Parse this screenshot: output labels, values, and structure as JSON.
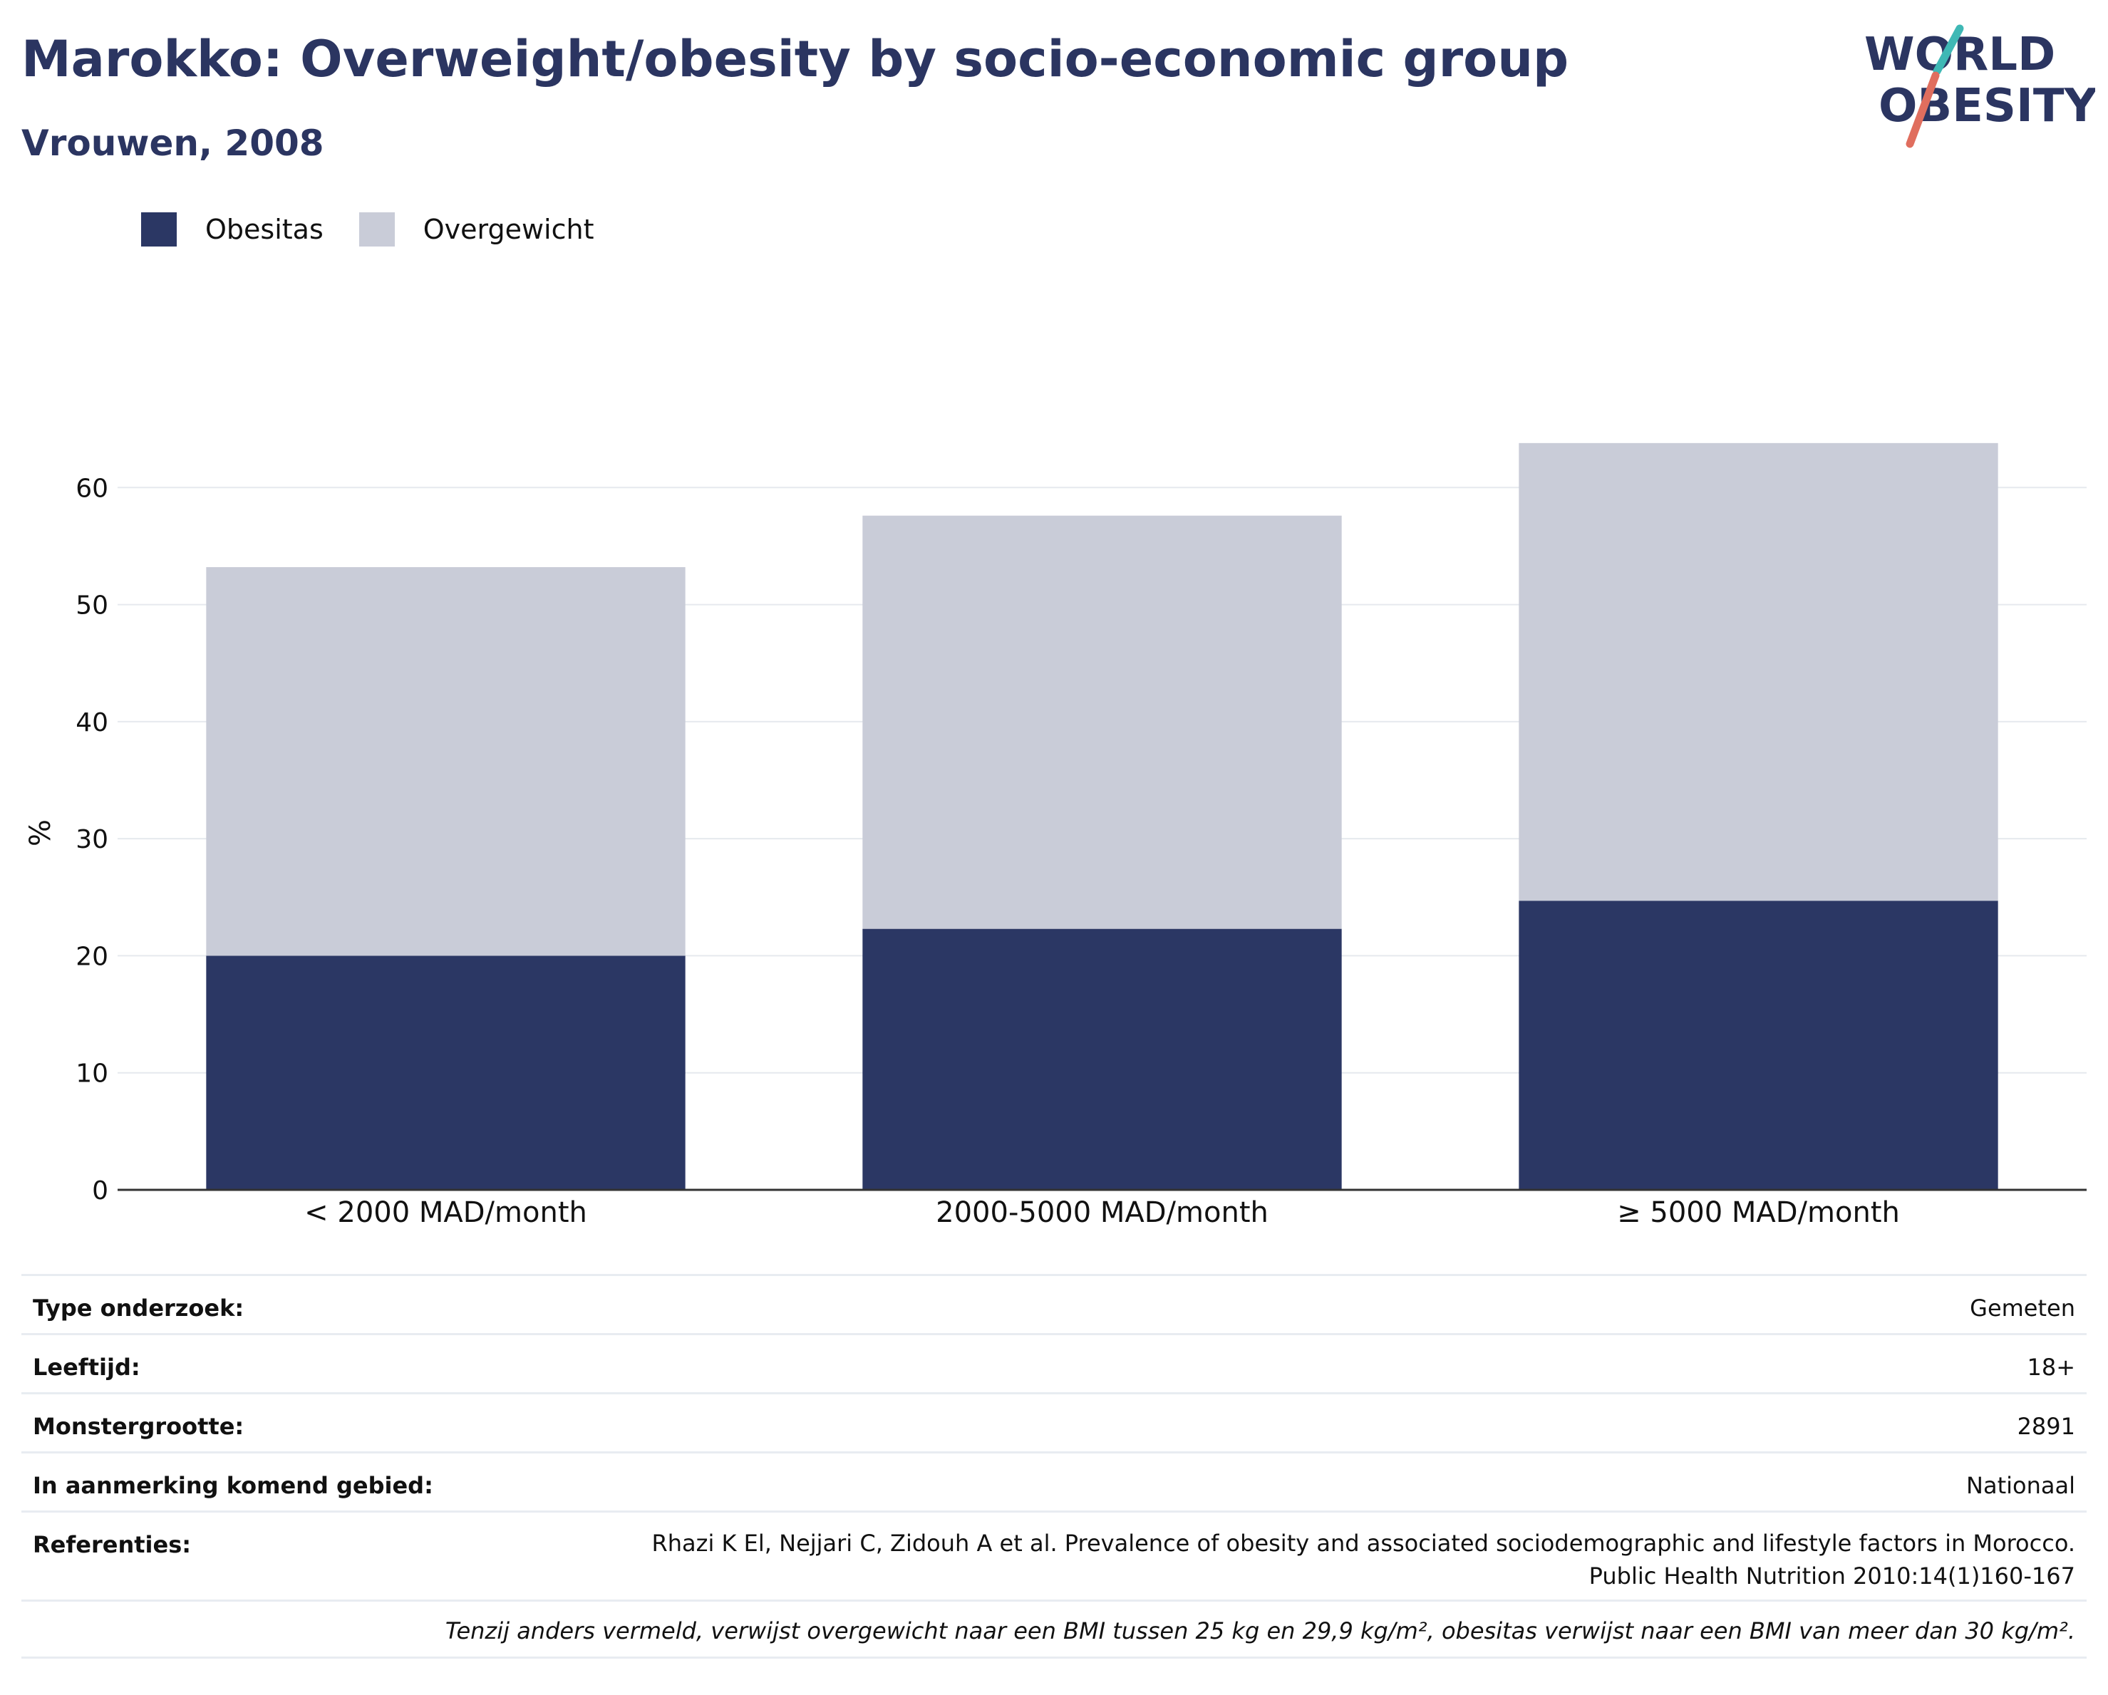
{
  "title": "Marokko: Overweight/obesity by socio-economic group",
  "subtitle": "Vrouwen, 2008",
  "logo": {
    "line1": "WORLD",
    "line2": "OBESITY"
  },
  "legend": [
    {
      "label": "Obesitas",
      "color": "#2b3764"
    },
    {
      "label": "Overgewicht",
      "color": "#c9ccd8"
    }
  ],
  "chart_data": {
    "type": "bar",
    "stacked": true,
    "categories": [
      "< 2000 MAD/month",
      "2000-5000 MAD/month",
      "≥ 5000 MAD/month"
    ],
    "series": [
      {
        "name": "Obesitas",
        "values": [
          20.0,
          22.3,
          24.7
        ],
        "color": "#2b3764"
      },
      {
        "name": "Overgewicht",
        "values": [
          33.2,
          35.3,
          39.1
        ],
        "color": "#c9ccd8"
      }
    ],
    "ylabel": "%",
    "ylim": [
      0,
      70
    ],
    "yticks": [
      0,
      10,
      20,
      30,
      40,
      50,
      60
    ],
    "grid": true,
    "legend_position": "top-left"
  },
  "info": {
    "rows": [
      {
        "label": "Type onderzoek:",
        "value": "Gemeten"
      },
      {
        "label": "Leeftijd:",
        "value": "18+"
      },
      {
        "label": "Monstergrootte:",
        "value": "2891"
      },
      {
        "label": "In aanmerking komend gebied:",
        "value": "Nationaal"
      },
      {
        "label": "Referenties:",
        "value": "Rhazi K El, Nejjari C, Zidouh A et al. Prevalence of obesity and associated sociodemographic and lifestyle factors in Morocco. Public Health Nutrition 2010:14(1)160-167"
      }
    ],
    "note": "Tenzij anders vermeld, verwijst overgewicht naar een BMI tussen 25 kg en 29,9 kg/m², obesitas verwijst naar een BMI van meer dan 30 kg/m²."
  }
}
